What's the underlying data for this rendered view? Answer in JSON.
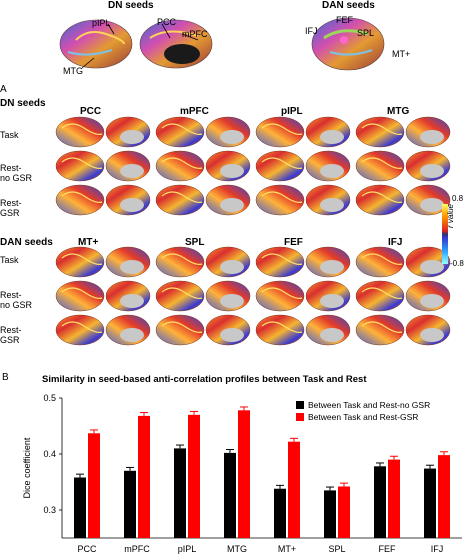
{
  "top": {
    "dn_title": "DN seeds",
    "dan_title": "DAN seeds",
    "dn_labels": [
      "pIPL",
      "PCC",
      "mPFC",
      "MTG"
    ],
    "dan_labels": [
      "IFJ",
      "FEF",
      "SPL",
      "MT+"
    ]
  },
  "panel_a": {
    "letter": "A",
    "dn_section": "DN seeds",
    "dan_section": "DAN seeds",
    "dn_columns": [
      "PCC",
      "mPFC",
      "pIPL",
      "MTG"
    ],
    "dan_columns": [
      "MT+",
      "SPL",
      "FEF",
      "IFJ"
    ],
    "rows": [
      {
        "line1": "Task",
        "line2": ""
      },
      {
        "line1": "Rest-",
        "line2": "no GSR"
      },
      {
        "line1": "Rest-",
        "line2": "GSR"
      }
    ],
    "colorbar": {
      "max": "0.8",
      "min": "-0.8",
      "label": "r value"
    }
  },
  "panel_b": {
    "letter": "B",
    "chart_data": {
      "type": "bar",
      "title": "Similarity in seed-based anti-correlation profiles between Task and Rest",
      "ylabel": "Dice coefficient",
      "xlabel": "",
      "ylim": [
        0.25,
        0.5
      ],
      "yticks": [
        "0.3",
        "0.4",
        "0.5"
      ],
      "categories": [
        "PCC",
        "mPFC",
        "pIPL",
        "MTG",
        "MT+",
        "SPL",
        "FEF",
        "IFJ"
      ],
      "series": [
        {
          "name": "Between Task and Rest-no GSR",
          "color": "#000000",
          "values": [
            0.358,
            0.37,
            0.41,
            0.402,
            0.338,
            0.335,
            0.378,
            0.374
          ],
          "errors": [
            0.006,
            0.006,
            0.006,
            0.006,
            0.006,
            0.006,
            0.006,
            0.006
          ]
        },
        {
          "name": "Between Task and Rest-GSR",
          "color": "#ff0000",
          "values": [
            0.437,
            0.468,
            0.47,
            0.478,
            0.422,
            0.342,
            0.39,
            0.398
          ],
          "errors": [
            0.006,
            0.006,
            0.006,
            0.006,
            0.006,
            0.006,
            0.006,
            0.006
          ]
        }
      ],
      "legend": "top-right"
    }
  }
}
